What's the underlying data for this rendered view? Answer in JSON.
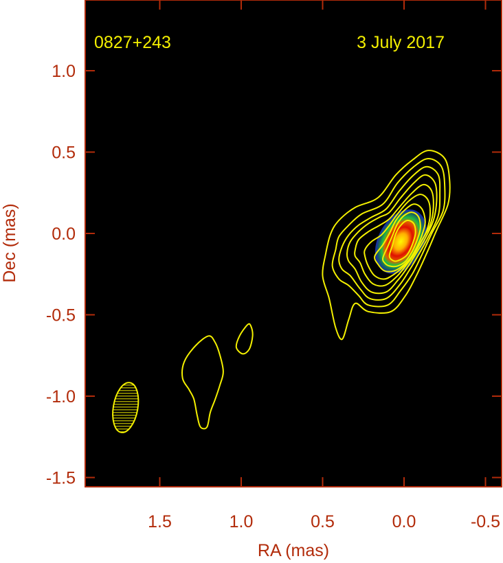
{
  "chart_data": {
    "type": "contour-map",
    "source": "0827+243",
    "date": "3 July 2017",
    "xlabel": "RA (mas)",
    "ylabel": "Dec (mas)",
    "xlim": [
      1.95,
      -0.55
    ],
    "ylim": [
      -1.55,
      1.4
    ],
    "x_reversed": true,
    "x_ticks": [
      1.5,
      1.0,
      0.5,
      0.0,
      -0.5
    ],
    "x_tick_labels": [
      "1.5",
      "1.0",
      "0.5",
      "0.0",
      "-0.5"
    ],
    "y_ticks": [
      1.0,
      0.5,
      0.0,
      -0.5,
      -1.0,
      -1.5
    ],
    "y_tick_labels": [
      "1.0",
      "0.5",
      "0.0",
      "-0.5",
      "-1.0",
      "-1.5"
    ],
    "background_color": "#000000",
    "axis_color": "#b22b0a",
    "contour_color": "#f4f000",
    "core": {
      "ra": 0.02,
      "dec": -0.05,
      "colors": [
        "#1a2fd0",
        "#20c040",
        "#d8e000",
        "#ff7a00",
        "#e01000"
      ]
    },
    "beam": {
      "ra": 1.71,
      "dec": -1.07,
      "major_mas": 0.31,
      "minor_mas": 0.15,
      "pa_deg": 10,
      "hatched": true
    },
    "contours": [
      {
        "name": "jet-contour-1",
        "points": [
          [
            0.5,
            -0.26
          ],
          [
            0.48,
            -0.12
          ],
          [
            0.45,
            0.0
          ],
          [
            0.4,
            0.08
          ],
          [
            0.3,
            0.16
          ],
          [
            0.16,
            0.22
          ],
          [
            0.05,
            0.36
          ],
          [
            -0.05,
            0.45
          ],
          [
            -0.15,
            0.51
          ],
          [
            -0.25,
            0.46
          ],
          [
            -0.28,
            0.32
          ],
          [
            -0.27,
            0.18
          ],
          [
            -0.2,
            0.02
          ],
          [
            -0.14,
            -0.12
          ],
          [
            -0.08,
            -0.25
          ],
          [
            -0.01,
            -0.38
          ],
          [
            0.08,
            -0.48
          ],
          [
            0.22,
            -0.48
          ],
          [
            0.3,
            -0.43
          ],
          [
            0.34,
            -0.53
          ],
          [
            0.38,
            -0.65
          ],
          [
            0.42,
            -0.58
          ],
          [
            0.46,
            -0.4
          ]
        ]
      },
      {
        "name": "jet-contour-2",
        "points": [
          [
            0.44,
            -0.2
          ],
          [
            0.42,
            -0.1
          ],
          [
            0.4,
            -0.02
          ],
          [
            0.34,
            0.05
          ],
          [
            0.26,
            0.12
          ],
          [
            0.13,
            0.18
          ],
          [
            0.04,
            0.31
          ],
          [
            -0.06,
            0.41
          ],
          [
            -0.15,
            0.46
          ],
          [
            -0.23,
            0.41
          ],
          [
            -0.25,
            0.28
          ],
          [
            -0.24,
            0.14
          ],
          [
            -0.17,
            0.0
          ],
          [
            -0.11,
            -0.13
          ],
          [
            -0.05,
            -0.25
          ],
          [
            0.02,
            -0.35
          ],
          [
            0.1,
            -0.44
          ],
          [
            0.22,
            -0.44
          ],
          [
            0.28,
            -0.38
          ],
          [
            0.34,
            -0.32
          ],
          [
            0.4,
            -0.28
          ]
        ]
      },
      {
        "name": "jet-contour-3",
        "points": [
          [
            0.4,
            -0.16
          ],
          [
            0.38,
            -0.08
          ],
          [
            0.34,
            -0.01
          ],
          [
            0.28,
            0.05
          ],
          [
            0.2,
            0.1
          ],
          [
            0.11,
            0.15
          ],
          [
            0.03,
            0.26
          ],
          [
            -0.06,
            0.36
          ],
          [
            -0.14,
            0.41
          ],
          [
            -0.21,
            0.36
          ],
          [
            -0.22,
            0.24
          ],
          [
            -0.21,
            0.11
          ],
          [
            -0.15,
            -0.02
          ],
          [
            -0.09,
            -0.13
          ],
          [
            -0.03,
            -0.23
          ],
          [
            0.03,
            -0.32
          ],
          [
            0.11,
            -0.4
          ],
          [
            0.21,
            -0.4
          ],
          [
            0.27,
            -0.34
          ],
          [
            0.33,
            -0.26
          ],
          [
            0.38,
            -0.22
          ]
        ]
      },
      {
        "name": "jet-contour-4",
        "points": [
          [
            0.35,
            -0.12
          ],
          [
            0.33,
            -0.05
          ],
          [
            0.28,
            0.01
          ],
          [
            0.22,
            0.06
          ],
          [
            0.15,
            0.1
          ],
          [
            0.09,
            0.13
          ],
          [
            0.02,
            0.22
          ],
          [
            -0.06,
            0.31
          ],
          [
            -0.13,
            0.36
          ],
          [
            -0.19,
            0.31
          ],
          [
            -0.2,
            0.2
          ],
          [
            -0.18,
            0.08
          ],
          [
            -0.13,
            -0.03
          ],
          [
            -0.07,
            -0.13
          ],
          [
            -0.02,
            -0.21
          ],
          [
            0.04,
            -0.29
          ],
          [
            0.11,
            -0.36
          ],
          [
            0.2,
            -0.36
          ],
          [
            0.26,
            -0.3
          ],
          [
            0.3,
            -0.22
          ],
          [
            0.34,
            -0.17
          ]
        ]
      },
      {
        "name": "jet-contour-5",
        "points": [
          [
            0.3,
            -0.1
          ],
          [
            0.28,
            -0.04
          ],
          [
            0.22,
            0.01
          ],
          [
            0.15,
            0.05
          ],
          [
            0.09,
            0.09
          ],
          [
            0.03,
            0.16
          ],
          [
            -0.05,
            0.25
          ],
          [
            -0.12,
            0.3
          ],
          [
            -0.17,
            0.26
          ],
          [
            -0.18,
            0.16
          ],
          [
            -0.16,
            0.05
          ],
          [
            -0.11,
            -0.04
          ],
          [
            -0.06,
            -0.13
          ],
          [
            -0.01,
            -0.2
          ],
          [
            0.05,
            -0.27
          ],
          [
            0.12,
            -0.32
          ],
          [
            0.19,
            -0.31
          ],
          [
            0.24,
            -0.25
          ],
          [
            0.27,
            -0.18
          ],
          [
            0.3,
            -0.14
          ]
        ]
      },
      {
        "name": "jet-contour-6",
        "points": [
          [
            0.24,
            -0.1
          ],
          [
            0.2,
            -0.05
          ],
          [
            0.14,
            -0.01
          ],
          [
            0.09,
            0.05
          ],
          [
            0.04,
            0.12
          ],
          [
            -0.03,
            0.2
          ],
          [
            -0.1,
            0.24
          ],
          [
            -0.15,
            0.2
          ],
          [
            -0.16,
            0.11
          ],
          [
            -0.14,
            0.02
          ],
          [
            -0.1,
            -0.06
          ],
          [
            -0.05,
            -0.14
          ],
          [
            0.0,
            -0.2
          ],
          [
            0.06,
            -0.25
          ],
          [
            0.12,
            -0.28
          ],
          [
            0.18,
            -0.26
          ],
          [
            0.22,
            -0.2
          ],
          [
            0.24,
            -0.14
          ]
        ]
      },
      {
        "name": "jet-contour-7",
        "points": [
          [
            0.18,
            -0.14
          ],
          [
            0.13,
            -0.07
          ],
          [
            0.09,
            0.0
          ],
          [
            0.05,
            0.08
          ],
          [
            0.0,
            0.14
          ],
          [
            -0.06,
            0.18
          ],
          [
            -0.11,
            0.15
          ],
          [
            -0.13,
            0.07
          ],
          [
            -0.11,
            -0.01
          ],
          [
            -0.08,
            -0.08
          ],
          [
            -0.04,
            -0.15
          ],
          [
            0.01,
            -0.2
          ],
          [
            0.06,
            -0.23
          ],
          [
            0.12,
            -0.23
          ],
          [
            0.16,
            -0.19
          ]
        ]
      },
      {
        "name": "jet-contour-8",
        "points": [
          [
            0.13,
            -0.15
          ],
          [
            0.1,
            -0.08
          ],
          [
            0.07,
            -0.01
          ],
          [
            0.04,
            0.06
          ],
          [
            0.0,
            0.11
          ],
          [
            -0.05,
            0.13
          ],
          [
            -0.09,
            0.1
          ],
          [
            -0.1,
            0.03
          ],
          [
            -0.08,
            -0.04
          ],
          [
            -0.05,
            -0.11
          ],
          [
            -0.01,
            -0.17
          ],
          [
            0.04,
            -0.2
          ],
          [
            0.09,
            -0.2
          ],
          [
            0.12,
            -0.18
          ]
        ]
      },
      {
        "name": "jet-contour-9",
        "points": [
          [
            0.09,
            -0.14
          ],
          [
            0.07,
            -0.07
          ],
          [
            0.05,
            0.0
          ],
          [
            0.02,
            0.05
          ],
          [
            -0.02,
            0.08
          ],
          [
            -0.06,
            0.06
          ],
          [
            -0.07,
            0.0
          ],
          [
            -0.05,
            -0.07
          ],
          [
            -0.02,
            -0.13
          ],
          [
            0.02,
            -0.16
          ],
          [
            0.06,
            -0.17
          ]
        ]
      },
      {
        "name": "knot-contour-1",
        "points": [
          [
            1.2,
            -0.63
          ],
          [
            1.28,
            -0.69
          ],
          [
            1.35,
            -0.79
          ],
          [
            1.36,
            -0.89
          ],
          [
            1.32,
            -0.96
          ],
          [
            1.29,
            -1.02
          ],
          [
            1.27,
            -1.12
          ],
          [
            1.25,
            -1.19
          ],
          [
            1.21,
            -1.19
          ],
          [
            1.19,
            -1.1
          ],
          [
            1.16,
            -1.02
          ],
          [
            1.13,
            -0.93
          ],
          [
            1.11,
            -0.85
          ],
          [
            1.13,
            -0.75
          ],
          [
            1.16,
            -0.67
          ]
        ]
      },
      {
        "name": "knot-contour-2",
        "points": [
          [
            0.96,
            -0.56
          ],
          [
            1.01,
            -0.63
          ],
          [
            1.03,
            -0.7
          ],
          [
            0.99,
            -0.74
          ],
          [
            0.95,
            -0.71
          ],
          [
            0.93,
            -0.63
          ],
          [
            0.94,
            -0.57
          ]
        ]
      }
    ]
  }
}
